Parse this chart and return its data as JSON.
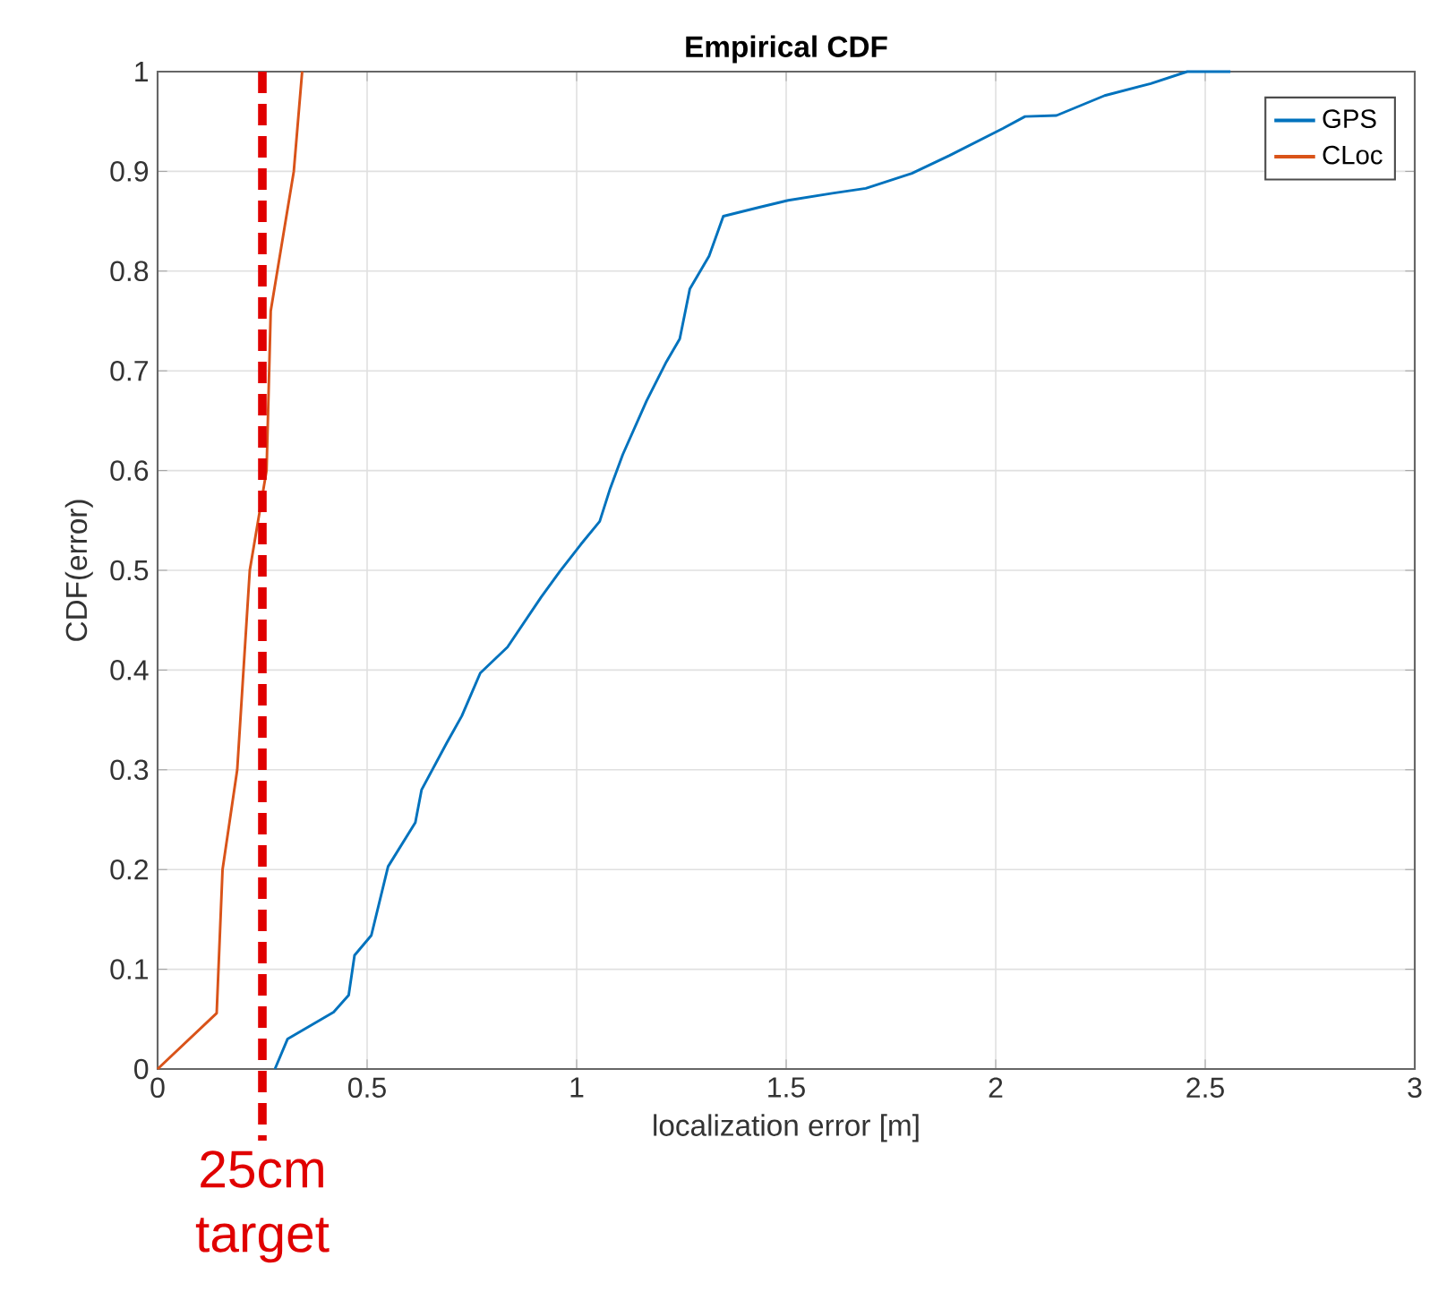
{
  "chart_data": {
    "type": "line",
    "title": "Empirical CDF",
    "xlabel": "localization error [m]",
    "ylabel": "CDF(error)",
    "series": [
      {
        "name": "GPS",
        "color": "#0072bd",
        "x": [
          0.28,
          0.31,
          0.42,
          0.456,
          0.47,
          0.51,
          0.55,
          0.615,
          0.63,
          0.69,
          0.726,
          0.77,
          0.835,
          0.915,
          0.96,
          1.01,
          1.055,
          1.08,
          1.11,
          1.167,
          1.214,
          1.246,
          1.27,
          1.316,
          1.35,
          1.436,
          1.505,
          1.61,
          1.69,
          1.8,
          1.89,
          2.017,
          2.07,
          2.145,
          2.26,
          2.37,
          2.457,
          2.56
        ],
        "values": [
          0,
          0.03,
          0.057,
          0.074,
          0.114,
          0.134,
          0.203,
          0.247,
          0.28,
          0.327,
          0.354,
          0.397,
          0.423,
          0.473,
          0.499,
          0.526,
          0.549,
          0.582,
          0.616,
          0.67,
          0.709,
          0.732,
          0.782,
          0.815,
          0.855,
          0.864,
          0.871,
          0.878,
          0.883,
          0.898,
          0.916,
          0.943,
          0.955,
          0.956,
          0.976,
          0.988,
          1.0,
          1.0
        ]
      },
      {
        "name": "CLoc",
        "color": "#d95319",
        "x": [
          0,
          0.141,
          0.155,
          0.19,
          0.22,
          0.26,
          0.27,
          0.325,
          0.345
        ],
        "values": [
          0,
          0.056,
          0.2,
          0.3,
          0.5,
          0.6,
          0.76,
          0.9,
          1.0
        ]
      }
    ],
    "xlim": [
      0,
      3
    ],
    "ylim": [
      0,
      1
    ],
    "xticks": [
      0,
      0.5,
      1,
      1.5,
      2,
      2.5,
      3
    ],
    "yticks": [
      0,
      0.1,
      0.2,
      0.3,
      0.4,
      0.5,
      0.6,
      0.7,
      0.8,
      0.9,
      1
    ],
    "ref_lines": [
      {
        "axis": "x",
        "value": 0.25,
        "label": "25cm target",
        "color": "#e00000",
        "line_style": "dashed"
      }
    ],
    "grid": true,
    "legend": "top right",
    "marker": "none",
    "line_style": "solid"
  }
}
